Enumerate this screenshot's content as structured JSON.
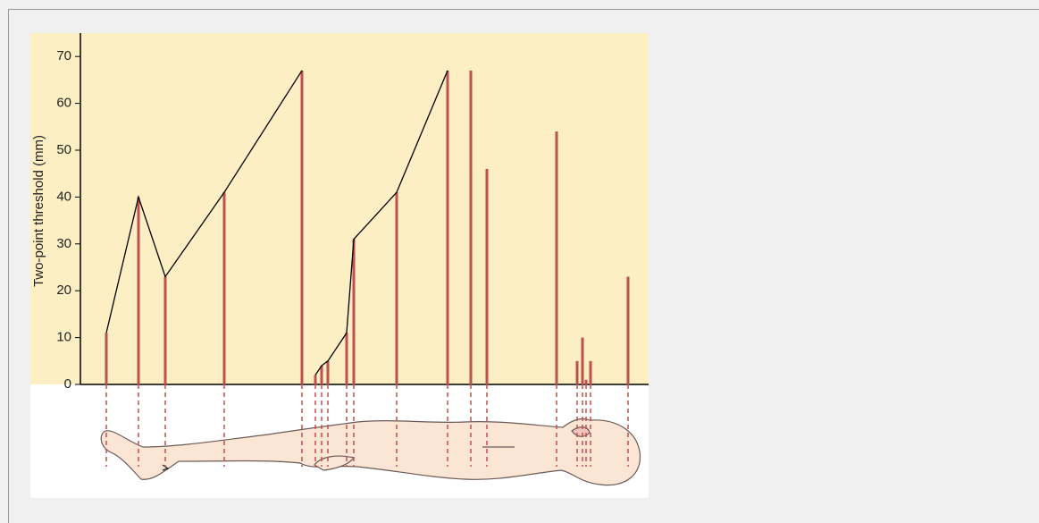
{
  "chart_data": {
    "type": "bar",
    "y_label": "Two-point threshold (mm)",
    "categories": [
      null,
      null,
      null,
      null,
      null,
      null,
      null,
      null,
      null,
      null,
      null,
      null,
      null,
      null,
      null,
      null,
      null,
      null,
      null,
      null
    ],
    "values": [
      11,
      40,
      23,
      41,
      67,
      2,
      4,
      5,
      11,
      31,
      41,
      67,
      67,
      46,
      54,
      5,
      10,
      1,
      5,
      23
    ],
    "color": "#c0504d",
    "line_color": "#000000",
    "ylim": [
      0,
      75
    ],
    "yticks": [
      0,
      10,
      20,
      30,
      40,
      50,
      60,
      70
    ]
  }
}
